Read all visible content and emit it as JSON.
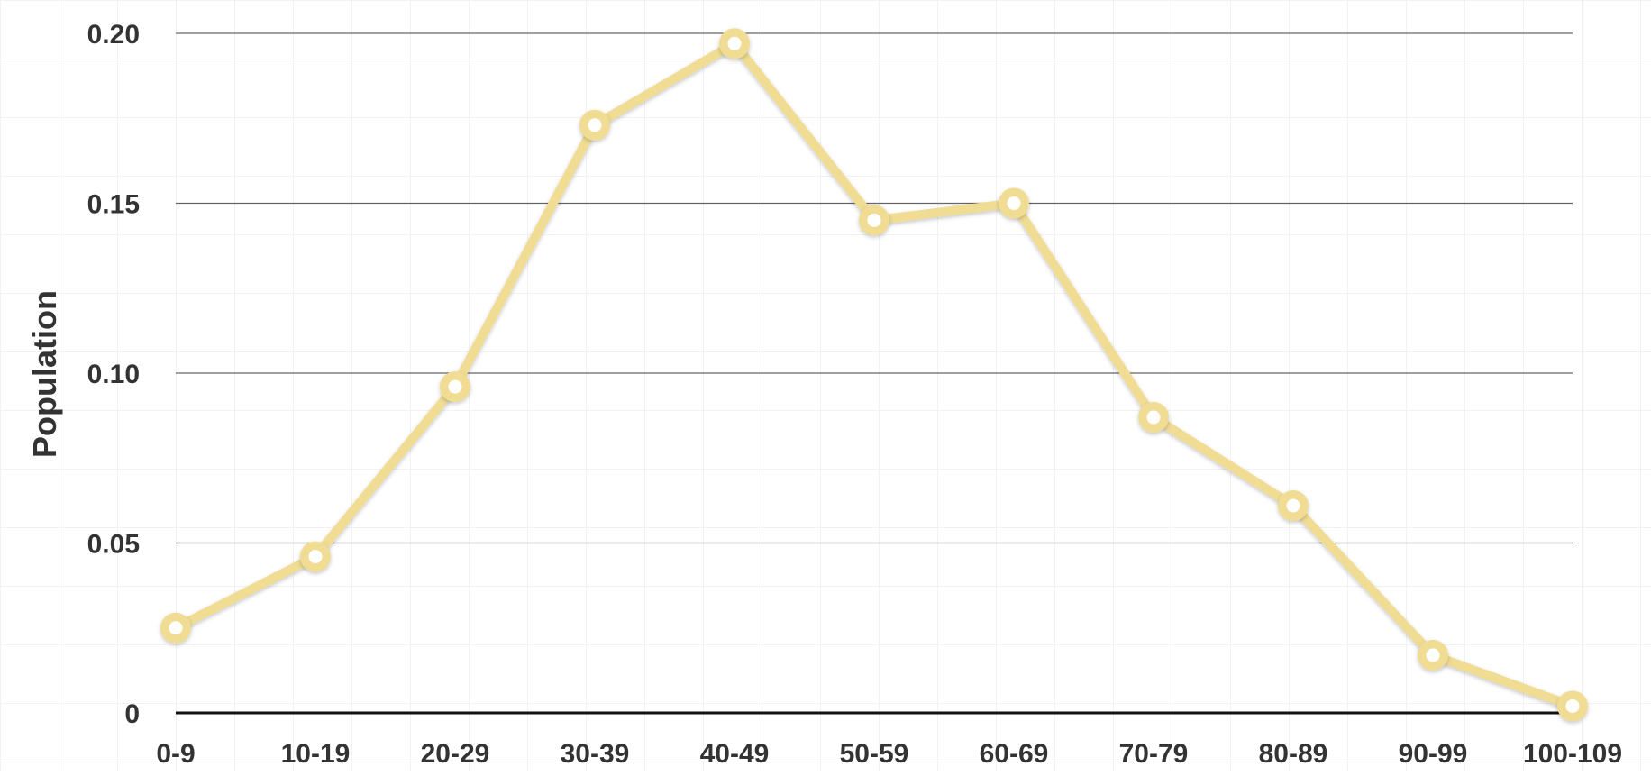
{
  "chart_data": {
    "type": "line",
    "title": "",
    "xlabel": "",
    "ylabel": "Population",
    "categories": [
      "0-9",
      "10-19",
      "20-29",
      "30-39",
      "40-49",
      "50-59",
      "60-69",
      "70-79",
      "80-89",
      "90-99",
      "100-109"
    ],
    "series": [
      {
        "values": [
          0.025,
          0.046,
          0.096,
          0.173,
          0.197,
          0.145,
          0.15,
          0.087,
          0.061,
          0.017,
          0.002
        ],
        "color": "#f0dc93"
      }
    ],
    "ylim": [
      0,
      0.2
    ],
    "yticks": [
      0,
      0.05,
      0.1,
      0.15,
      0.2
    ],
    "ytick_labels": [
      "0",
      "0.05",
      "0.10",
      "0.15",
      "0.20"
    ],
    "grid": true,
    "gridline_color": "#666666",
    "background_grid_color": "#f2f2f2",
    "marker": "ring-dot"
  }
}
